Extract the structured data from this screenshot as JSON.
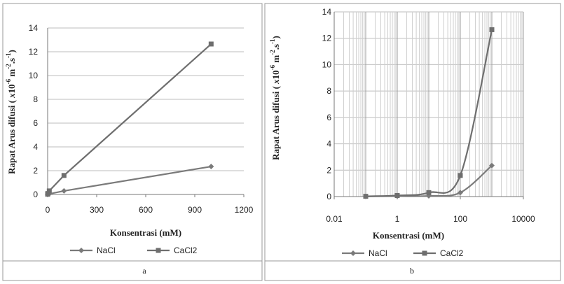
{
  "chart_data": [
    {
      "panel_label": "a",
      "type": "line",
      "xlabel": "Konsentrasi (mM)",
      "ylabel": "Rapat Arus difusi ( x10-6 m-2.s-1)",
      "xlim": [
        0,
        1200
      ],
      "ylim": [
        0,
        14
      ],
      "xticks": [
        0,
        300,
        600,
        900,
        1200
      ],
      "yticks": [
        0,
        2,
        4,
        6,
        8,
        10,
        12,
        14
      ],
      "grid": "horizontal",
      "legend_position": "bottom",
      "series": [
        {
          "name": "NaCl",
          "marker": "diamond",
          "color": "#7a7a7a",
          "x": [
            0.1,
            1,
            10,
            100,
            1000
          ],
          "y": [
            0.01,
            0.03,
            0.05,
            0.3,
            2.35
          ]
        },
        {
          "name": "CaCl2",
          "marker": "square",
          "color": "#6e6e6e",
          "x": [
            0.1,
            1,
            10,
            100,
            1000
          ],
          "y": [
            0.02,
            0.08,
            0.3,
            1.6,
            12.65
          ]
        }
      ]
    },
    {
      "panel_label": "b",
      "type": "line",
      "xscale": "log",
      "xlabel": "Konsentrasi (mM)",
      "ylabel": "Rapat Arus difusi ( x10-6 m-2.s-1)",
      "xlim": [
        0.01,
        10000
      ],
      "ylim": [
        0,
        14
      ],
      "xticks": [
        0.01,
        1,
        100,
        10000
      ],
      "xticklabels": [
        "0.01",
        "1",
        "100",
        "10000"
      ],
      "yticks": [
        0,
        2,
        4,
        6,
        8,
        10,
        12,
        14
      ],
      "grid": "both",
      "legend_position": "bottom",
      "series": [
        {
          "name": "NaCl",
          "marker": "diamond",
          "color": "#7a7a7a",
          "x": [
            0.1,
            1,
            10,
            100,
            1000
          ],
          "y": [
            0.01,
            0.03,
            0.05,
            0.3,
            2.35
          ]
        },
        {
          "name": "CaCl2",
          "marker": "square",
          "color": "#6e6e6e",
          "x": [
            0.1,
            1,
            10,
            100,
            1000
          ],
          "y": [
            0.02,
            0.08,
            0.3,
            1.6,
            12.65
          ]
        }
      ]
    }
  ]
}
